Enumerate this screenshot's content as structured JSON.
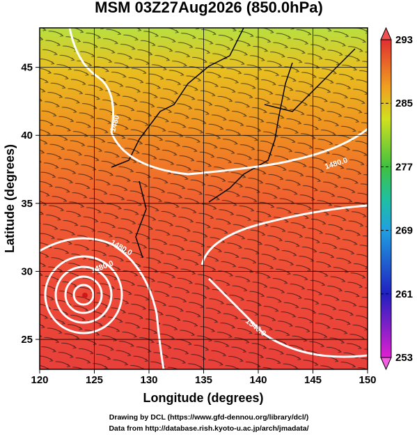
{
  "title": "MSM 03Z27Aug2026 (850.0hPa)",
  "x_axis": {
    "label": "Longitude (degrees)",
    "lim": [
      120,
      150
    ],
    "ticks": [
      120,
      125,
      130,
      135,
      140,
      145,
      150
    ]
  },
  "y_axis": {
    "label": "Latitude  (degrees)",
    "lim": [
      22.8,
      47.9
    ],
    "ticks": [
      25,
      30,
      35,
      40,
      45
    ]
  },
  "colorbar": {
    "lim": [
      253,
      293
    ],
    "ticks": [
      253,
      261,
      269,
      277,
      285,
      293
    ]
  },
  "contour_labels": [
    "1480",
    "1480.0",
    "1480.0",
    "1480.0",
    "1540.0"
  ],
  "credits": [
    "Drawing by DCL (https://www.gfd-dennou.org/library/dcl/)",
    "Data from http://database.rish.kyoto-u.ac.jp/arch/jmadata/"
  ]
}
